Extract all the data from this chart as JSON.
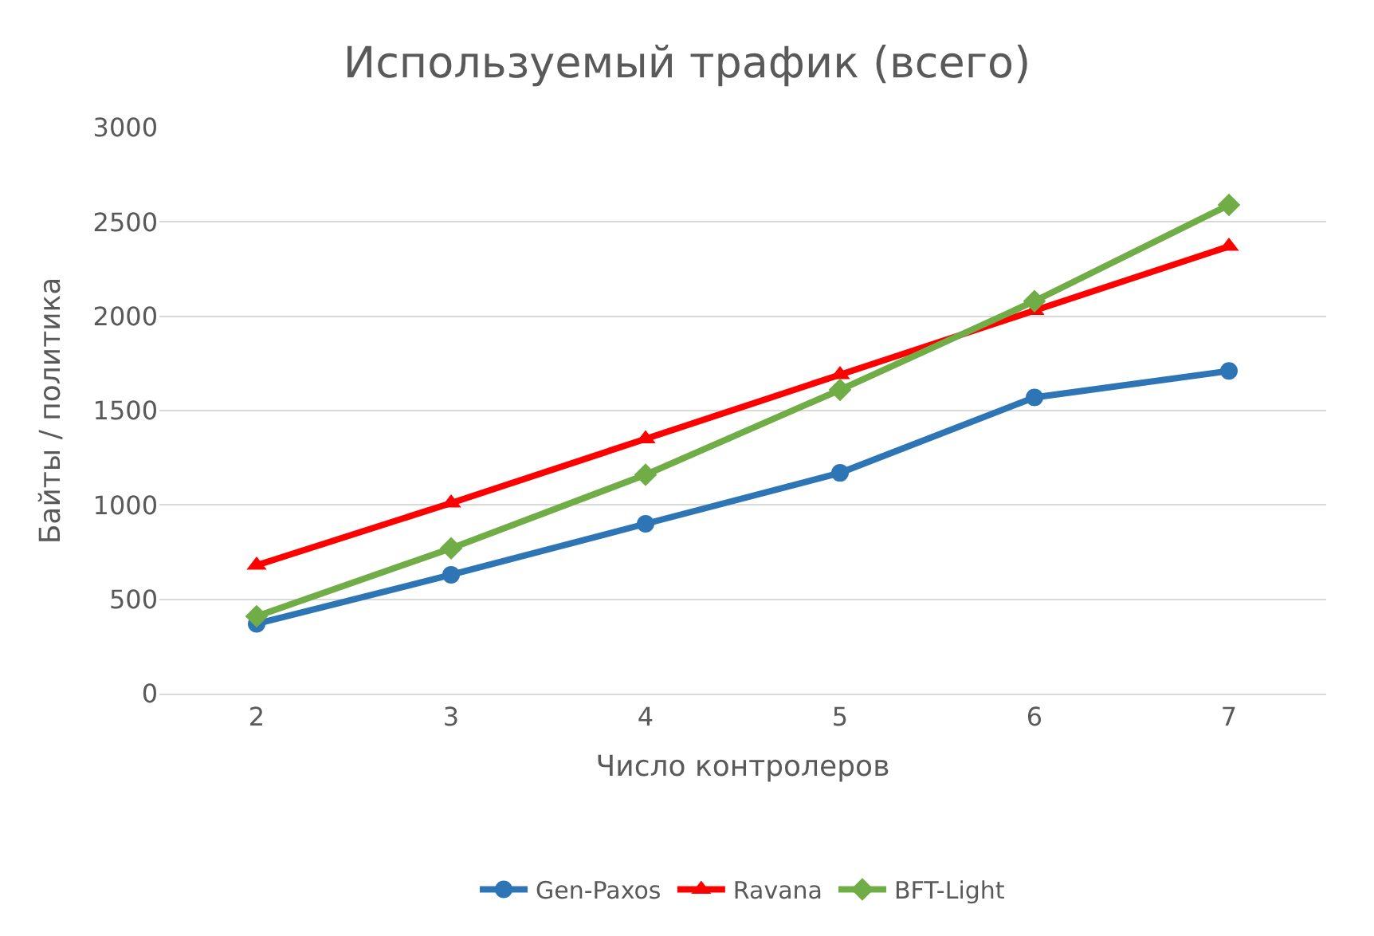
{
  "chart_data": {
    "type": "line",
    "title": "Используемый трафик (всего)",
    "xlabel": "Число контролеров",
    "ylabel": "Байты / политика",
    "categories": [
      "2",
      "3",
      "4",
      "5",
      "6",
      "7"
    ],
    "series": [
      {
        "name": "Gen-Paxos",
        "color": "#2e75b6",
        "marker": "circle",
        "values": [
          370,
          630,
          900,
          1170,
          1570,
          1710
        ]
      },
      {
        "name": "Ravana",
        "color": "#ff0000",
        "marker": "triangle",
        "values": [
          680,
          1010,
          1350,
          1690,
          2030,
          2370
        ]
      },
      {
        "name": "BFT-Light",
        "color": "#70ad47",
        "marker": "diamond",
        "values": [
          410,
          770,
          1160,
          1610,
          2080,
          2590
        ]
      }
    ],
    "ylim": [
      0,
      3000
    ],
    "yticks": [
      0,
      500,
      1000,
      1500,
      2000,
      2500,
      3000
    ],
    "grid": "y",
    "legend": "bottom",
    "line_style": "solid"
  }
}
